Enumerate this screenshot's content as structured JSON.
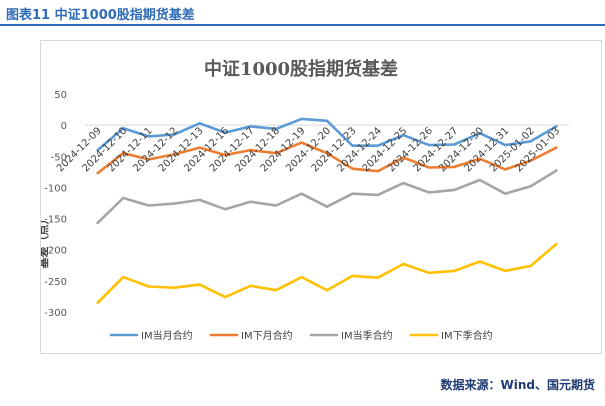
{
  "header": {
    "title": "图表11 中证1000股指期货基差"
  },
  "footer": {
    "source": "数据来源：Wind、国元期货"
  },
  "chart_data": {
    "type": "line",
    "title": "中证1000股指期货基差",
    "ylabel": "基差（点）",
    "xlabel": "",
    "ylim": [
      -300,
      50
    ],
    "yticks": [
      50,
      0,
      -50,
      -100,
      -150,
      -200,
      -250,
      -300
    ],
    "grid": false,
    "legend": "bottom",
    "categories": [
      "2024-12-09",
      "2024-12-10",
      "2024-12-11",
      "2024-12-12",
      "2024-12-13",
      "2024-12-16",
      "2024-12-17",
      "2024-12-18",
      "2024-12-19",
      "2024-12-20",
      "2024-12-23",
      "2024-12-24",
      "2024-12-25",
      "2024-12-26",
      "2024-12-27",
      "2024-12-30",
      "2024-12-31",
      "2025-01-02",
      "2025-01-03"
    ],
    "series": [
      {
        "name": "IM当月合约",
        "color": "#5b9bd5",
        "values": [
          -40,
          -5,
          -18,
          -15,
          3,
          -12,
          -2,
          -6,
          10,
          7,
          -33,
          -33,
          -16,
          -32,
          -31,
          -13,
          -32,
          -26,
          -2
        ]
      },
      {
        "name": "IM下月合约",
        "color": "#ed7d31",
        "values": [
          -77,
          -45,
          -55,
          -47,
          -36,
          -48,
          -40,
          -45,
          -28,
          -45,
          -70,
          -74,
          -52,
          -68,
          -67,
          -54,
          -71,
          -57,
          -36
        ]
      },
      {
        "name": "IM当季合约",
        "color": "#a5a5a5",
        "values": [
          -157,
          -117,
          -129,
          -126,
          -120,
          -135,
          -123,
          -129,
          -110,
          -131,
          -110,
          -112,
          -93,
          -108,
          -104,
          -88,
          -110,
          -98,
          -73
        ]
      },
      {
        "name": "IM下季合约",
        "color": "#ffc000",
        "values": [
          -285,
          -244,
          -259,
          -261,
          -256,
          -276,
          -258,
          -265,
          -244,
          -265,
          -242,
          -245,
          -223,
          -237,
          -234,
          -219,
          -234,
          -226,
          -191
        ]
      }
    ]
  }
}
